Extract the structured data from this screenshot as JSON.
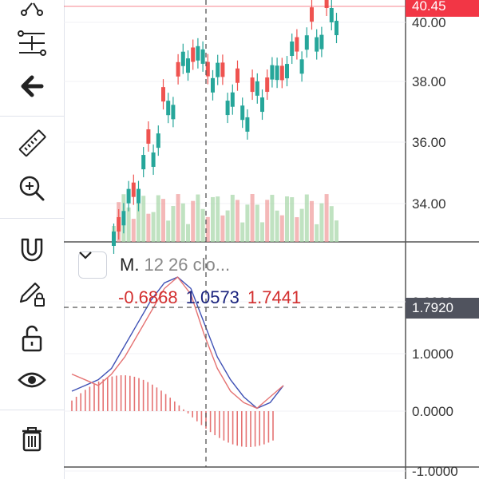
{
  "toolbar": {
    "tools": [
      {
        "name": "trend-line-tool-icon"
      },
      {
        "name": "fib-retracement-tool-icon"
      },
      {
        "name": "back-arrow-icon"
      },
      {
        "name": "ruler-icon"
      },
      {
        "name": "zoom-in-icon"
      },
      {
        "name": "magnet-icon"
      },
      {
        "name": "pencil-lock-icon"
      },
      {
        "name": "unlock-icon"
      },
      {
        "name": "eye-icon"
      },
      {
        "name": "trash-icon"
      }
    ]
  },
  "price_axis": {
    "labels": [
      "40.00",
      "38.00",
      "36.00",
      "34.00"
    ],
    "current_price": "40.45",
    "current_color": "#f23645"
  },
  "indicator": {
    "name": "M.",
    "params": "12 26 clo...",
    "value_macd": "-0.6868",
    "value_signal": "1.0573",
    "value_hist": "1.7441",
    "color_red": "#d32f2f",
    "color_blue": "#1a237e",
    "crosshair_value": "1.7920",
    "axis_labels": [
      "2.0000",
      "1.0000",
      "0.0000",
      "-1.0000"
    ]
  },
  "chart_data": {
    "type": "line",
    "series": [
      {
        "values": [
          0.4,
          0.5,
          0.6,
          0.8,
          1.2,
          1.6,
          2.0,
          2.3,
          2.4,
          2.2,
          1.6,
          1.0,
          0.6,
          0.3,
          0.1,
          0.2,
          0.5
        ]
      },
      {
        "values": [
          0.7,
          0.6,
          0.5,
          0.7,
          1.0,
          1.4,
          1.8,
          2.2,
          2.4,
          2.1,
          1.4,
          0.8,
          0.4,
          0.2,
          0.1,
          0.3,
          0.5
        ]
      }
    ],
    "ylim": [
      -1,
      2.5
    ]
  }
}
